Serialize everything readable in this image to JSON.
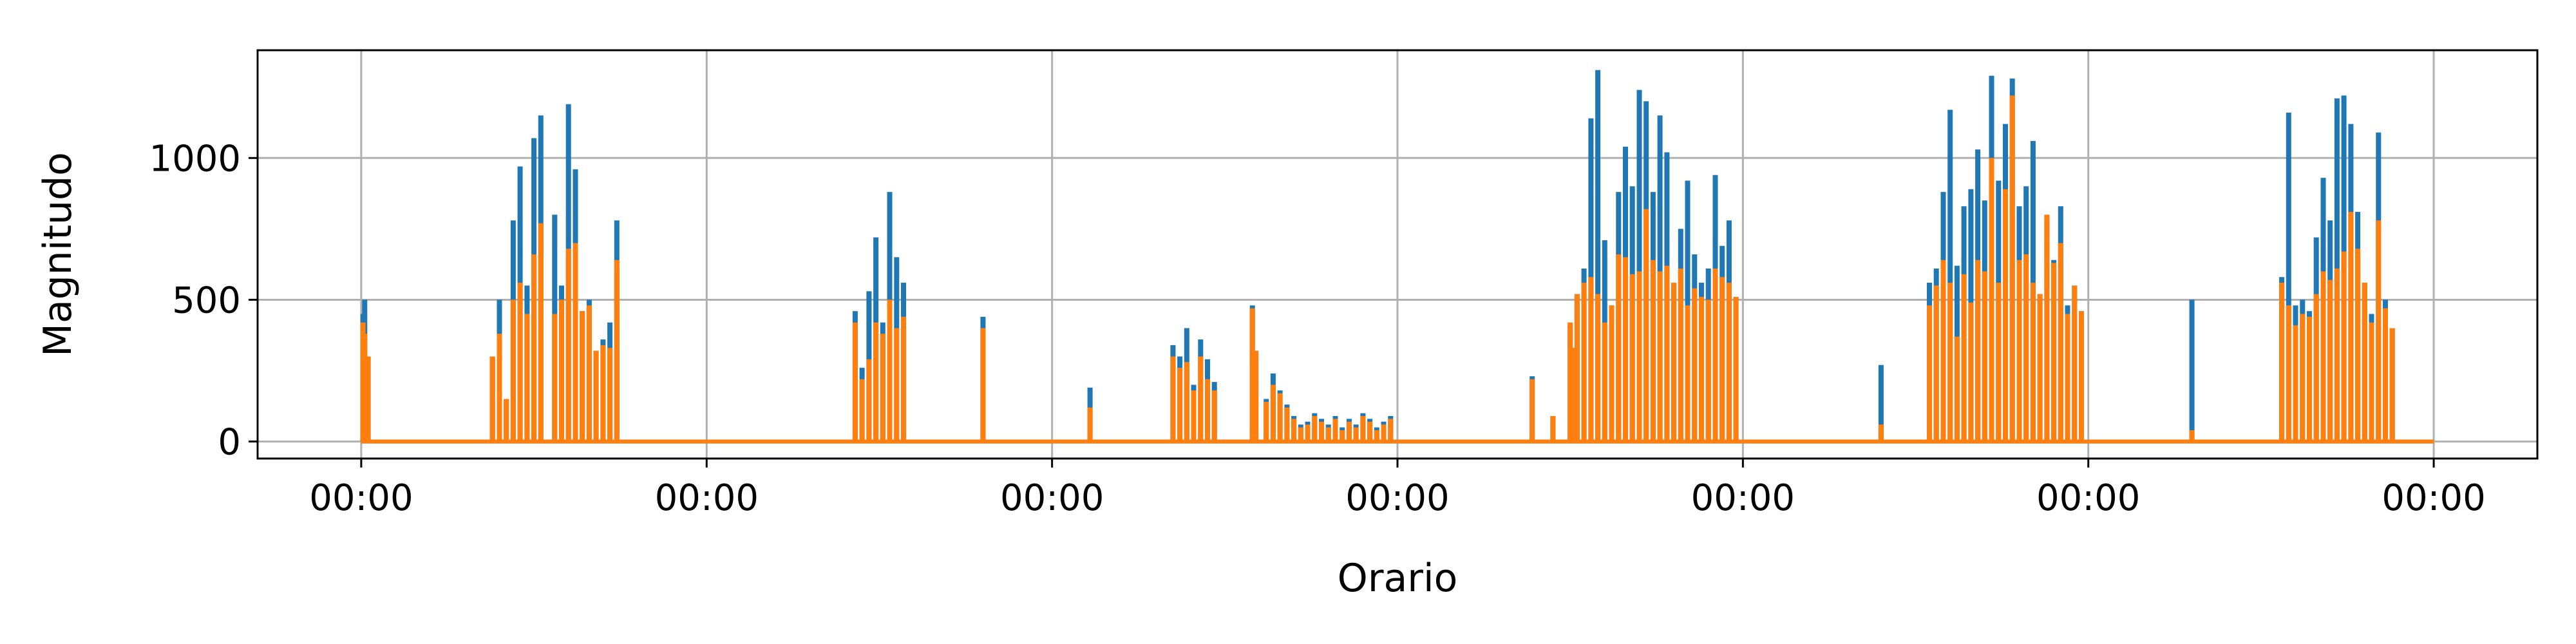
{
  "chart_data": {
    "type": "line",
    "title": "",
    "xlabel": "Orario",
    "ylabel": "Magnitudo",
    "x_tick_labels": [
      "00:00",
      "00:00",
      "00:00",
      "00:00",
      "00:00",
      "00:00",
      "00:00"
    ],
    "x_range_days": [
      -0.3,
      6.3
    ],
    "ylim": [
      -60,
      1380
    ],
    "y_ticks": [
      0,
      500,
      1000
    ],
    "grid": true,
    "legend": "none",
    "colors": [
      "#1f77b4",
      "#ff7f0e"
    ],
    "series": [
      {
        "color": "#1f77b4",
        "x": [
          0.0,
          0.005,
          0.01,
          0.02,
          0.03,
          0.04,
          0.05,
          0.37,
          0.38,
          0.4,
          0.42,
          0.44,
          0.46,
          0.48,
          0.5,
          0.52,
          0.54,
          0.56,
          0.58,
          0.6,
          0.62,
          0.64,
          0.66,
          0.68,
          0.7,
          0.72,
          0.74,
          0.76,
          0.78,
          0.8,
          0.82,
          1.42,
          1.43,
          1.45,
          1.47,
          1.49,
          1.51,
          1.53,
          1.55,
          1.57,
          1.59,
          1.61,
          1.63,
          1.65,
          1.67,
          1.69,
          1.71,
          1.8,
          1.82,
          1.84,
          2.1,
          2.11,
          2.34,
          2.35,
          2.37,
          2.39,
          2.41,
          2.43,
          2.45,
          2.47,
          2.58,
          2.59,
          2.62,
          2.64,
          2.66,
          2.68,
          2.7,
          2.72,
          2.74,
          2.76,
          2.78,
          2.8,
          2.82,
          2.84,
          2.86,
          2.88,
          2.9,
          2.92,
          2.94,
          2.96,
          2.98,
          3.0,
          3.38,
          3.39,
          3.44,
          3.45,
          3.5,
          3.51,
          3.52,
          3.54,
          3.56,
          3.58,
          3.6,
          3.62,
          3.64,
          3.66,
          3.68,
          3.7,
          3.72,
          3.74,
          3.76,
          3.78,
          3.8,
          3.82,
          3.84,
          3.86,
          3.88,
          3.9,
          3.92,
          3.94,
          3.96,
          3.98,
          4.39,
          4.4,
          4.53,
          4.54,
          4.56,
          4.58,
          4.6,
          4.62,
          4.64,
          4.66,
          4.68,
          4.7,
          4.72,
          4.74,
          4.76,
          4.78,
          4.8,
          4.82,
          4.84,
          4.86,
          4.88,
          4.9,
          4.92,
          4.94,
          4.96,
          4.98,
          5.29,
          5.3,
          5.32,
          5.55,
          5.56,
          5.58,
          5.6,
          5.62,
          5.64,
          5.66,
          5.68,
          5.7,
          5.72,
          5.74,
          5.76,
          5.78,
          5.8,
          5.82,
          5.84,
          5.86,
          5.88,
          5.9,
          6.0
        ],
        "y": [
          0,
          450,
          500,
          300,
          0,
          0,
          0,
          0,
          300,
          500,
          150,
          780,
          970,
          550,
          1070,
          1150,
          0,
          800,
          550,
          1190,
          960,
          460,
          500,
          320,
          360,
          420,
          780,
          0,
          0,
          0,
          0,
          0,
          460,
          260,
          530,
          720,
          420,
          880,
          650,
          560,
          0,
          0,
          0,
          0,
          0,
          0,
          0,
          440,
          0,
          0,
          0,
          190,
          0,
          340,
          300,
          400,
          200,
          360,
          290,
          210,
          480,
          320,
          150,
          240,
          180,
          130,
          90,
          60,
          70,
          100,
          80,
          60,
          90,
          50,
          80,
          60,
          100,
          80,
          50,
          70,
          90,
          0,
          0,
          230,
          0,
          90,
          410,
          330,
          520,
          610,
          1140,
          1310,
          710,
          480,
          880,
          1040,
          900,
          1240,
          1200,
          880,
          1150,
          1020,
          560,
          750,
          920,
          660,
          560,
          610,
          940,
          690,
          780,
          510,
          0,
          270,
          0,
          560,
          610,
          880,
          1170,
          620,
          830,
          890,
          1030,
          850,
          1290,
          920,
          1120,
          1280,
          830,
          900,
          1060,
          520,
          790,
          640,
          830,
          480,
          550,
          460,
          0,
          500,
          0,
          0,
          580,
          1160,
          480,
          500,
          460,
          720,
          930,
          780,
          1210,
          1220,
          1120,
          810,
          560,
          450,
          1090,
          500,
          400,
          0,
          0
        ]
      },
      {
        "color": "#ff7f0e",
        "x": [
          0.0,
          0.005,
          0.01,
          0.02,
          0.03,
          0.04,
          0.05,
          0.37,
          0.38,
          0.4,
          0.42,
          0.44,
          0.46,
          0.48,
          0.5,
          0.52,
          0.54,
          0.56,
          0.58,
          0.6,
          0.62,
          0.64,
          0.66,
          0.68,
          0.7,
          0.72,
          0.74,
          0.76,
          0.78,
          0.8,
          0.82,
          1.42,
          1.43,
          1.45,
          1.47,
          1.49,
          1.51,
          1.53,
          1.55,
          1.57,
          1.59,
          1.61,
          1.63,
          1.65,
          1.67,
          1.69,
          1.71,
          1.8,
          1.82,
          1.84,
          2.1,
          2.11,
          2.34,
          2.35,
          2.37,
          2.39,
          2.41,
          2.43,
          2.45,
          2.47,
          2.58,
          2.59,
          2.62,
          2.64,
          2.66,
          2.68,
          2.7,
          2.72,
          2.74,
          2.76,
          2.78,
          2.8,
          2.82,
          2.84,
          2.86,
          2.88,
          2.9,
          2.92,
          2.94,
          2.96,
          2.98,
          3.0,
          3.38,
          3.39,
          3.44,
          3.45,
          3.5,
          3.51,
          3.52,
          3.54,
          3.56,
          3.58,
          3.6,
          3.62,
          3.64,
          3.66,
          3.68,
          3.7,
          3.72,
          3.74,
          3.76,
          3.78,
          3.8,
          3.82,
          3.84,
          3.86,
          3.88,
          3.9,
          3.92,
          3.94,
          3.96,
          3.98,
          4.39,
          4.4,
          4.53,
          4.54,
          4.56,
          4.58,
          4.6,
          4.62,
          4.64,
          4.66,
          4.68,
          4.7,
          4.72,
          4.74,
          4.76,
          4.78,
          4.8,
          4.82,
          4.84,
          4.86,
          4.88,
          4.9,
          4.92,
          4.94,
          4.96,
          4.98,
          5.29,
          5.3,
          5.32,
          5.55,
          5.56,
          5.58,
          5.6,
          5.62,
          5.64,
          5.66,
          5.68,
          5.7,
          5.72,
          5.74,
          5.76,
          5.78,
          5.8,
          5.82,
          5.84,
          5.86,
          5.88,
          5.9,
          6.0
        ],
        "y": [
          0,
          420,
          380,
          300,
          0,
          0,
          0,
          0,
          300,
          380,
          150,
          500,
          560,
          450,
          660,
          770,
          0,
          450,
          500,
          680,
          700,
          460,
          480,
          320,
          340,
          330,
          640,
          0,
          0,
          0,
          0,
          0,
          420,
          220,
          290,
          420,
          380,
          500,
          400,
          440,
          0,
          0,
          0,
          0,
          0,
          0,
          0,
          400,
          0,
          0,
          0,
          120,
          0,
          300,
          260,
          280,
          180,
          300,
          220,
          180,
          470,
          320,
          140,
          200,
          170,
          120,
          80,
          50,
          60,
          90,
          70,
          50,
          80,
          40,
          70,
          50,
          90,
          70,
          40,
          60,
          80,
          0,
          0,
          220,
          0,
          90,
          420,
          330,
          520,
          560,
          580,
          520,
          420,
          480,
          660,
          650,
          590,
          600,
          820,
          640,
          600,
          620,
          560,
          610,
          480,
          540,
          510,
          500,
          610,
          580,
          560,
          510,
          0,
          60,
          0,
          480,
          550,
          640,
          560,
          370,
          590,
          490,
          640,
          600,
          1000,
          560,
          890,
          1220,
          640,
          660,
          560,
          520,
          800,
          630,
          700,
          450,
          550,
          460,
          0,
          40,
          0,
          0,
          560,
          480,
          410,
          450,
          440,
          520,
          600,
          570,
          610,
          670,
          810,
          680,
          560,
          420,
          780,
          470,
          400,
          0,
          0
        ]
      }
    ]
  }
}
